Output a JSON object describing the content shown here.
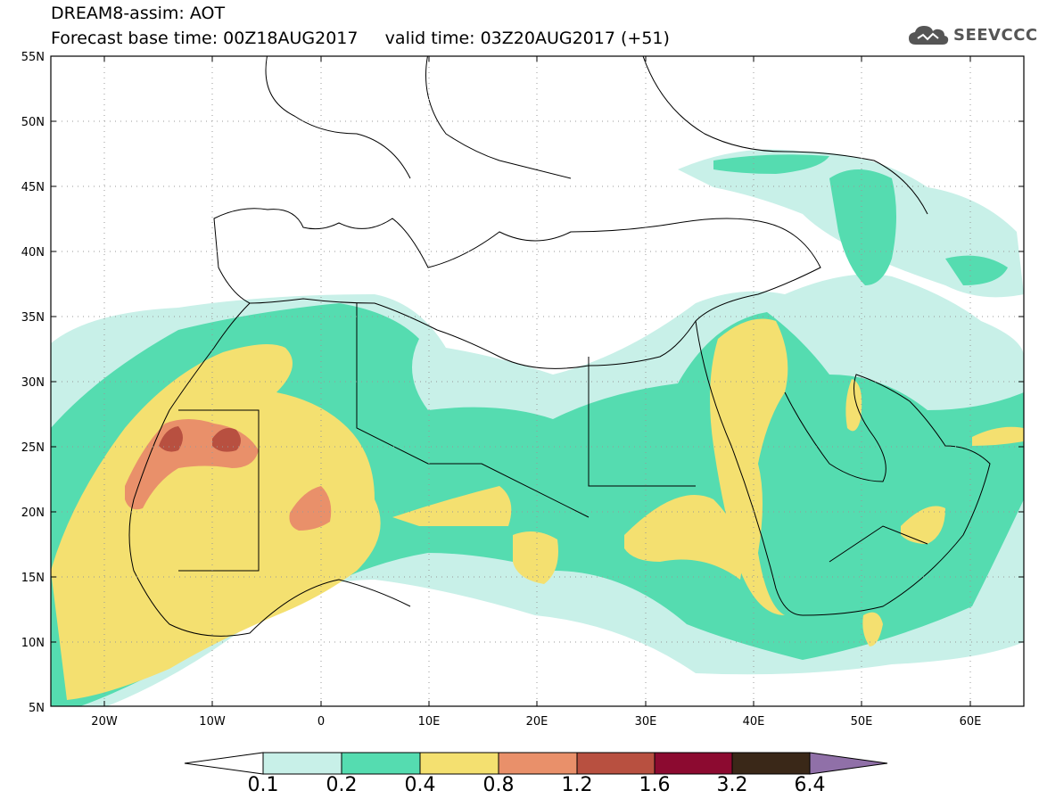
{
  "header": {
    "title_line1": "DREAM8-assim: AOT",
    "title_line2": "Forecast base time: 00Z18AUG2017     valid time: 03Z20AUG2017 (+51)",
    "logo_text": "SEEVCCC"
  },
  "axes": {
    "lat_labels": [
      "55N",
      "50N",
      "45N",
      "40N",
      "35N",
      "30N",
      "25N",
      "20N",
      "15N",
      "10N",
      "5N"
    ],
    "lon_labels": [
      "20W",
      "10W",
      "0",
      "10E",
      "20E",
      "30E",
      "40E",
      "50E",
      "60E"
    ]
  },
  "colorbar": {
    "labels": [
      "0.1",
      "0.2",
      "0.4",
      "0.8",
      "1.2",
      "1.6",
      "3.2",
      "6.4"
    ],
    "colors": [
      "#c8f0e8",
      "#55dcb0",
      "#f4e070",
      "#e9906a",
      "#b85040",
      "#8c0a30",
      "#3a2818",
      "#9070a8"
    ]
  },
  "map_colors": {
    "c01": "#c8f0e8",
    "c02": "#55dcb0",
    "c04": "#f4e070",
    "c08": "#e9906a",
    "c12": "#b85040"
  }
}
